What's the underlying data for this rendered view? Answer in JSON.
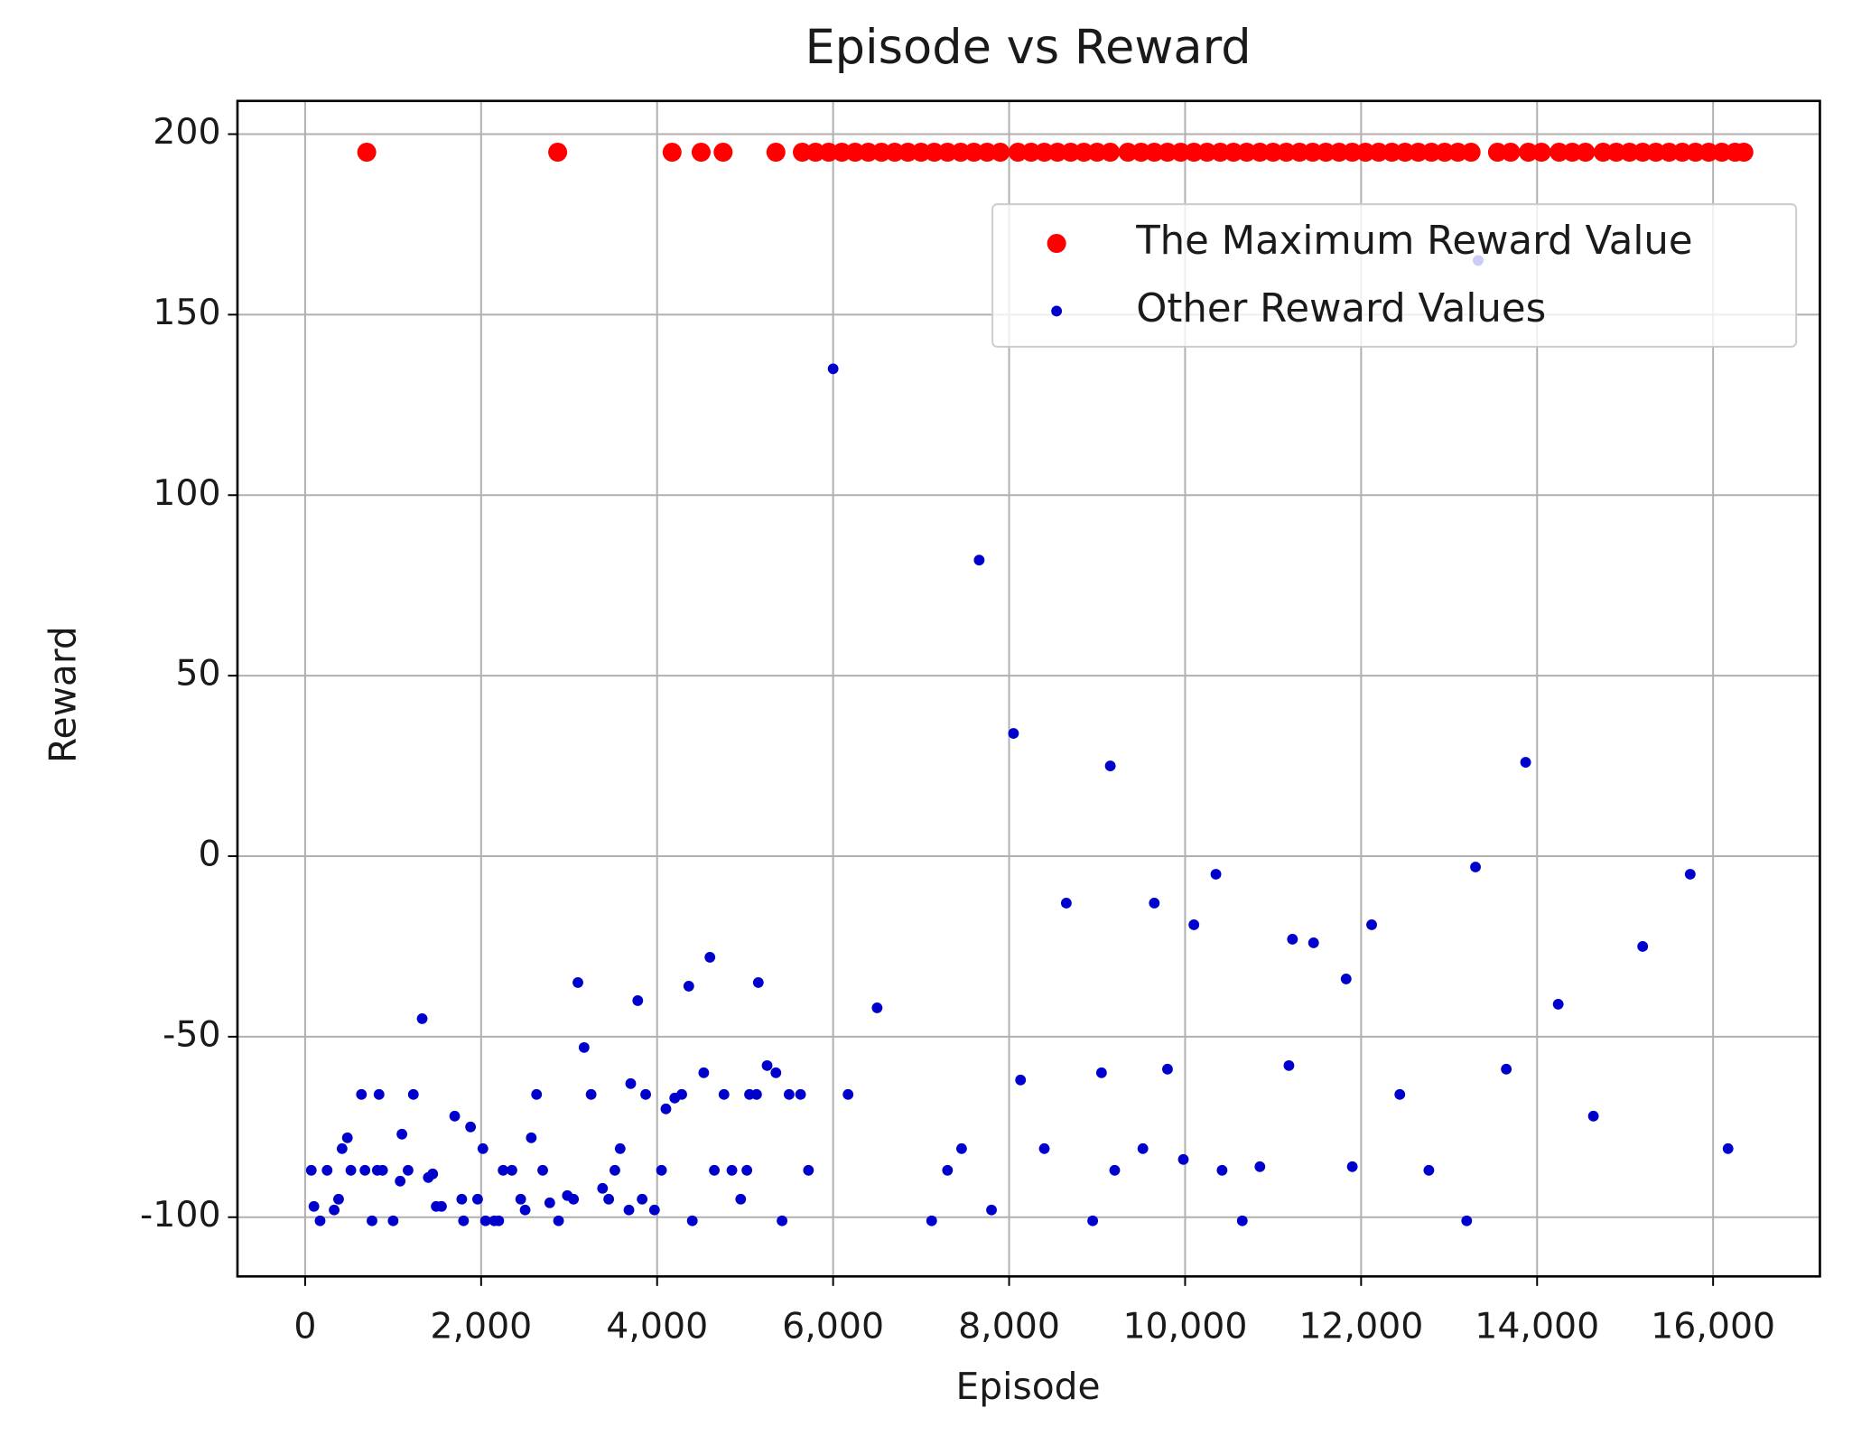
{
  "chart_data": {
    "type": "scatter",
    "title": "Episode vs Reward",
    "x_label": "Episode",
    "y_label": "Reward",
    "xlim": [
      -769,
      17214
    ],
    "ylim": [
      -116.4,
      209.2
    ],
    "xticks": [
      0,
      {
        "value": 2000,
        "label": "2,000"
      },
      {
        "value": 4000,
        "label": "4,000"
      },
      {
        "value": 6000,
        "label": "6,000"
      },
      {
        "value": 8000,
        "label": "8,000"
      },
      {
        "value": 10000,
        "label": "10,000"
      },
      {
        "value": 12000,
        "label": "12,000"
      },
      {
        "value": 14000,
        "label": "14,000"
      },
      {
        "value": 16000,
        "label": "16,000"
      }
    ],
    "yticks": [
      -100,
      -50,
      0,
      50,
      100,
      150,
      200
    ],
    "grid": true,
    "legend": "upper right",
    "series": [
      {
        "name": "The Maximum Reward Value",
        "color": "#ff0000",
        "marker_size": 8,
        "x": [
          700,
          2870,
          4170,
          4500,
          4750,
          5350,
          5650,
          5800,
          5950,
          6100,
          6250,
          6400,
          6550,
          6700,
          6850,
          7000,
          7150,
          7300,
          7450,
          7600,
          7750,
          7900,
          8100,
          8250,
          8400,
          8550,
          8700,
          8850,
          9000,
          9150,
          9350,
          9500,
          9650,
          9800,
          9950,
          10100,
          10250,
          10400,
          10550,
          10700,
          10850,
          11000,
          11150,
          11300,
          11450,
          11600,
          11750,
          11900,
          12050,
          12200,
          12350,
          12500,
          12650,
          12800,
          12950,
          13100,
          13250,
          13550,
          13700,
          13900,
          14050,
          14250,
          14400,
          14550,
          14750,
          14900,
          15050,
          15200,
          15350,
          15500,
          15650,
          15800,
          15950,
          16100,
          16250,
          16350
        ],
        "values": [
          195,
          195,
          195,
          195,
          195,
          195,
          195,
          195,
          195,
          195,
          195,
          195,
          195,
          195,
          195,
          195,
          195,
          195,
          195,
          195,
          195,
          195,
          195,
          195,
          195,
          195,
          195,
          195,
          195,
          195,
          195,
          195,
          195,
          195,
          195,
          195,
          195,
          195,
          195,
          195,
          195,
          195,
          195,
          195,
          195,
          195,
          195,
          195,
          195,
          195,
          195,
          195,
          195,
          195,
          195,
          195,
          195,
          195,
          195,
          195,
          195,
          195,
          195,
          195,
          195,
          195,
          195,
          195,
          195,
          195,
          195,
          195,
          195,
          195,
          195,
          195
        ]
      },
      {
        "name": "Other Reward Values",
        "color": "#0000cc",
        "marker_size": 4.5,
        "x": [
          70,
          100,
          170,
          250,
          330,
          380,
          420,
          480,
          520,
          640,
          680,
          760,
          820,
          840,
          880,
          1000,
          1080,
          1100,
          1170,
          1230,
          1330,
          1400,
          1450,
          1490,
          1550,
          1700,
          1780,
          1800,
          1880,
          1960,
          2020,
          2050,
          2150,
          2200,
          2250,
          2350,
          2450,
          2500,
          2570,
          2630,
          2700,
          2780,
          2880,
          2980,
          3050,
          3100,
          3170,
          3250,
          3380,
          3450,
          3520,
          3580,
          3680,
          3700,
          3780,
          3830,
          3870,
          3970,
          4050,
          4100,
          4200,
          4280,
          4360,
          4400,
          4530,
          4600,
          4650,
          4760,
          4850,
          4950,
          5020,
          5050,
          5130,
          5150,
          5250,
          5350,
          5420,
          5500,
          5630,
          5720,
          6000,
          6170,
          6500,
          7120,
          7300,
          7460,
          7660,
          7800,
          8050,
          8130,
          8400,
          8650,
          8950,
          9050,
          9150,
          9200,
          9520,
          9650,
          9800,
          9980,
          10100,
          10350,
          10420,
          10650,
          10850,
          11180,
          11220,
          11460,
          11830,
          11900,
          12120,
          12440,
          12770,
          13200,
          13300,
          13330,
          13650,
          13870,
          14240,
          14640,
          15200,
          15740,
          16170
        ],
        "values": [
          -87,
          -97,
          -101,
          -87,
          -98,
          -95,
          -81,
          -78,
          -87,
          -66,
          -87,
          -101,
          -87,
          -66,
          -87,
          -101,
          -90,
          -77,
          -87,
          -66,
          -45,
          -89,
          -88,
          -97,
          -97,
          -72,
          -95,
          -101,
          -75,
          -95,
          -81,
          -101,
          -101,
          -101,
          -87,
          -87,
          -95,
          -98,
          -78,
          -66,
          -87,
          -96,
          -101,
          -94,
          -95,
          -35,
          -53,
          -66,
          -92,
          -95,
          -87,
          -81,
          -98,
          -63,
          -40,
          -95,
          -66,
          -98,
          -87,
          -70,
          -67,
          -66,
          -36,
          -101,
          -60,
          -28,
          -87,
          -66,
          -87,
          -95,
          -87,
          -66,
          -66,
          -35,
          -58,
          -60,
          -101,
          -66,
          -66,
          -87,
          135,
          -66,
          -42,
          -101,
          -87,
          -81,
          82,
          -98,
          34,
          -62,
          -81,
          -13,
          -101,
          -60,
          25,
          -87,
          -81,
          -13,
          -59,
          -84,
          -19,
          -5,
          -87,
          -101,
          -86,
          -58,
          -23,
          -24,
          -34,
          -86,
          -19,
          -66,
          -87,
          -101,
          -3,
          165,
          -59,
          26,
          -41,
          -72,
          -25,
          -5,
          -81
        ]
      }
    ]
  }
}
